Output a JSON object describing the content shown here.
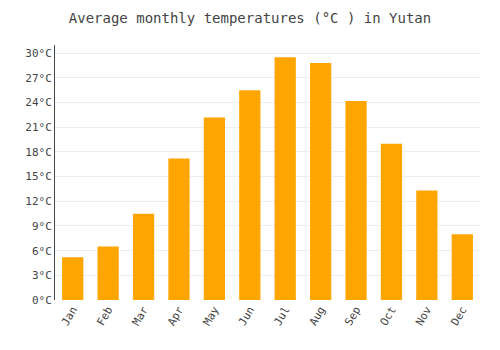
{
  "chart_data": {
    "type": "bar",
    "title": "Average monthly temperatures (°C ) in Yutan",
    "categories": [
      "Jan",
      "Feb",
      "Mar",
      "Apr",
      "May",
      "Jun",
      "Jul",
      "Aug",
      "Sep",
      "Oct",
      "Nov",
      "Dec"
    ],
    "values": [
      5.2,
      6.5,
      10.5,
      17.2,
      22.2,
      25.5,
      29.5,
      28.8,
      24.2,
      19.0,
      13.3,
      8.0
    ],
    "color": "#FFA500",
    "ylim": [
      0,
      31
    ],
    "yticks": [
      {
        "value": 0,
        "label": "0°C"
      },
      {
        "value": 3,
        "label": "3°C"
      },
      {
        "value": 6,
        "label": "6°C"
      },
      {
        "value": 9,
        "label": "9°C"
      },
      {
        "value": 12,
        "label": "12°C"
      },
      {
        "value": 15,
        "label": "15°C"
      },
      {
        "value": 18,
        "label": "18°C"
      },
      {
        "value": 21,
        "label": "21°C"
      },
      {
        "value": 24,
        "label": "24°C"
      },
      {
        "value": 27,
        "label": "27°C"
      },
      {
        "value": 30,
        "label": "30°C"
      }
    ],
    "grid": true
  }
}
